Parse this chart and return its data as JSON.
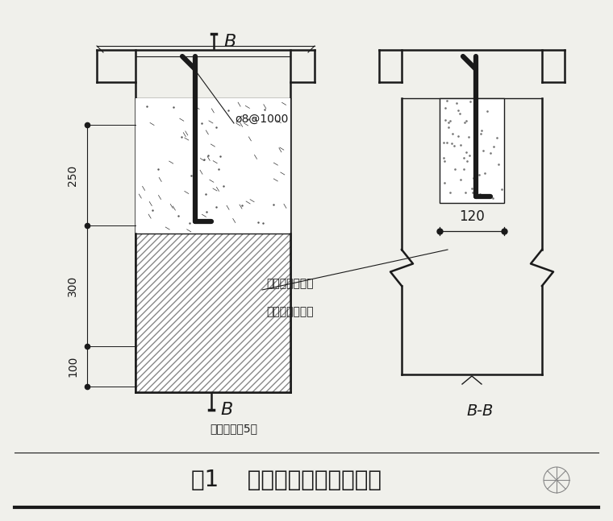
{
  "bg_color": "#f0f0eb",
  "line_color": "#1a1a1a",
  "title_text": "图1    砖墙顶部与梁连接做法",
  "section_label_B_top": "B",
  "section_label_B_bottom": "B",
  "section_label_BB": "B-B",
  "annotation_rebar": "ø8@1000",
  "annotation_masonry": "砌墙时随每皮砖",
  "annotation_mortar": "用砂浆分层填实",
  "annotation_wall_len": "墙长度大于5米",
  "dim_250": "250",
  "dim_300": "300",
  "dim_100": "100",
  "dim_120": "120",
  "font_size_title": 20,
  "font_size_label": 11,
  "font_size_dim": 11,
  "font_size_annot": 11
}
